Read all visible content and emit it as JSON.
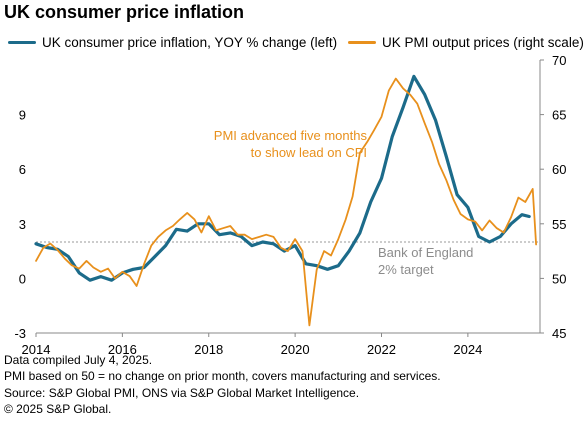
{
  "title": "UK consumer price inflation",
  "colors": {
    "cpi": "#1c6b8a",
    "pmi": "#e8901c",
    "axis": "#888888",
    "target": "#999999",
    "annotation": "#e8901c",
    "target_text": "#8c8c8c"
  },
  "annotations": {
    "pmi_note": [
      "PMI advanced five months",
      "to show lead on CPI"
    ],
    "target_note": [
      "Bank of England",
      "2% target"
    ]
  },
  "footer": [
    "Data compiled July 4, 2025.",
    "PMI based on 50 = no change on prior month, covers manufacturing and services.",
    "Source: S&P Global PMI, ONS via S&P Global Market Intelligence.",
    "© 2025 S&P Global."
  ],
  "chart_data": {
    "type": "line",
    "title": "UK consumer price inflation",
    "x_ticks": [
      "2014",
      "2016",
      "2018",
      "2020",
      "2022",
      "2024"
    ],
    "left_axis": {
      "ylim": [
        -3,
        12
      ],
      "ticks": [
        "-3",
        "0",
        "3",
        "6",
        "9"
      ]
    },
    "right_axis": {
      "ylim": [
        45,
        70
      ],
      "ticks": [
        "45",
        "50",
        "55",
        "60",
        "65",
        "70"
      ]
    },
    "reference_line": {
      "axis": "left",
      "value": 2,
      "label": "Bank of England 2% target"
    },
    "series": [
      {
        "name": "UK consumer price inflation, YOY % change (left)",
        "axis": "left",
        "x": [
          2014.0,
          2014.25,
          2014.5,
          2014.75,
          2015.0,
          2015.25,
          2015.5,
          2015.75,
          2016.0,
          2016.25,
          2016.5,
          2016.75,
          2017.0,
          2017.25,
          2017.5,
          2017.75,
          2018.0,
          2018.25,
          2018.5,
          2018.75,
          2019.0,
          2019.25,
          2019.5,
          2019.75,
          2020.0,
          2020.25,
          2020.5,
          2020.75,
          2021.0,
          2021.25,
          2021.5,
          2021.75,
          2022.0,
          2022.25,
          2022.5,
          2022.75,
          2023.0,
          2023.25,
          2023.5,
          2023.75,
          2024.0,
          2024.25,
          2024.5,
          2024.75,
          2025.0,
          2025.25,
          2025.42
        ],
        "values": [
          1.9,
          1.7,
          1.6,
          1.2,
          0.3,
          -0.1,
          0.1,
          -0.1,
          0.3,
          0.5,
          0.6,
          1.2,
          1.8,
          2.7,
          2.6,
          3.0,
          3.0,
          2.4,
          2.5,
          2.3,
          1.8,
          2.0,
          1.9,
          1.5,
          1.8,
          0.8,
          0.7,
          0.5,
          0.7,
          1.5,
          2.5,
          4.2,
          5.5,
          7.8,
          9.4,
          11.1,
          10.1,
          8.7,
          6.7,
          4.6,
          3.9,
          2.3,
          2.0,
          2.3,
          3.0,
          3.5,
          3.4
        ]
      },
      {
        "name": "UK PMI output prices (right scale)",
        "axis": "right",
        "x": [
          2014.0,
          2014.17,
          2014.33,
          2014.5,
          2014.67,
          2014.83,
          2015.0,
          2015.17,
          2015.33,
          2015.5,
          2015.67,
          2015.83,
          2016.0,
          2016.17,
          2016.33,
          2016.5,
          2016.67,
          2016.83,
          2017.0,
          2017.17,
          2017.33,
          2017.5,
          2017.67,
          2017.83,
          2018.0,
          2018.17,
          2018.33,
          2018.5,
          2018.67,
          2018.83,
          2019.0,
          2019.17,
          2019.33,
          2019.5,
          2019.67,
          2019.83,
          2020.0,
          2020.17,
          2020.33,
          2020.5,
          2020.67,
          2020.83,
          2021.0,
          2021.17,
          2021.33,
          2021.5,
          2021.67,
          2021.83,
          2022.0,
          2022.17,
          2022.33,
          2022.5,
          2022.67,
          2022.83,
          2023.0,
          2023.17,
          2023.33,
          2023.5,
          2023.67,
          2023.83,
          2024.0,
          2024.17,
          2024.33,
          2024.5,
          2024.67,
          2024.83,
          2025.0,
          2025.17,
          2025.33,
          2025.5,
          2025.58
        ],
        "values": [
          51.6,
          52.8,
          53.2,
          52.6,
          51.8,
          51.2,
          50.9,
          51.6,
          51.0,
          50.6,
          50.9,
          50.0,
          50.6,
          50.2,
          49.3,
          51.3,
          53.0,
          53.8,
          54.4,
          54.8,
          55.4,
          56.0,
          55.4,
          54.2,
          55.7,
          54.4,
          54.6,
          54.8,
          54.0,
          54.0,
          53.6,
          53.8,
          54.0,
          53.8,
          52.8,
          52.5,
          53.6,
          52.5,
          45.7,
          50.8,
          52.5,
          52.1,
          53.6,
          55.4,
          57.5,
          61.5,
          62.5,
          63.6,
          64.8,
          67.2,
          68.3,
          67.4,
          66.8,
          66.0,
          64.2,
          62.5,
          60.5,
          59.0,
          57.2,
          55.9,
          55.4,
          55.2,
          54.4,
          55.3,
          54.6,
          54.2,
          55.6,
          57.4,
          57.0,
          58.2,
          53.1
        ]
      }
    ]
  }
}
